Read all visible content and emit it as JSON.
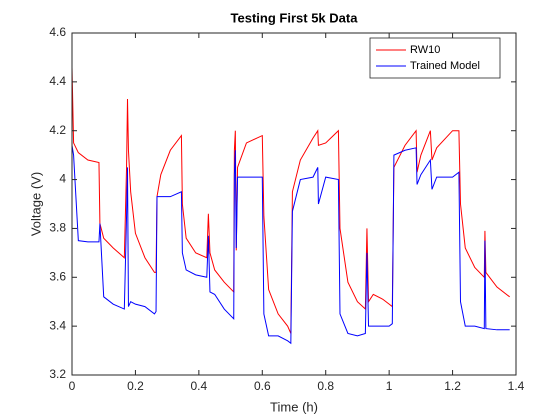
{
  "chart_data": {
    "type": "line",
    "title": "Testing First 5k Data",
    "xlabel": "Time (h)",
    "ylabel": "Voltage (V)",
    "x": [
      0,
      0.005,
      0.02,
      0.05,
      0.085,
      0.088,
      0.1,
      0.13,
      0.165,
      0.172,
      0.175,
      0.178,
      0.185,
      0.2,
      0.23,
      0.26,
      0.265,
      0.268,
      0.28,
      0.31,
      0.345,
      0.348,
      0.36,
      0.39,
      0.425,
      0.43,
      0.435,
      0.45,
      0.48,
      0.51,
      0.512,
      0.515,
      0.518,
      0.522,
      0.55,
      0.6,
      0.605,
      0.62,
      0.65,
      0.68,
      0.69,
      0.695,
      0.72,
      0.76,
      0.775,
      0.777,
      0.8,
      0.84,
      0.845,
      0.87,
      0.9,
      0.925,
      0.93,
      0.935,
      0.95,
      0.98,
      1.0,
      1.01,
      1.015,
      1.05,
      1.085,
      1.088,
      1.1,
      1.13,
      1.135,
      1.15,
      1.2,
      1.22,
      1.225,
      1.24,
      1.27,
      1.3,
      1.302,
      1.305,
      1.34,
      1.38
    ],
    "series": [
      {
        "name": "RW10",
        "color": "#ff0000",
        "values": [
          4.46,
          4.15,
          4.11,
          4.08,
          4.07,
          3.82,
          3.76,
          3.72,
          3.68,
          4.05,
          4.33,
          4.12,
          3.95,
          3.78,
          3.68,
          3.62,
          3.62,
          3.93,
          4.02,
          4.12,
          4.18,
          3.9,
          3.76,
          3.7,
          3.68,
          3.86,
          3.7,
          3.63,
          3.58,
          3.54,
          4.12,
          4.2,
          3.71,
          4.05,
          4.15,
          4.18,
          3.85,
          3.55,
          3.45,
          3.4,
          3.37,
          3.95,
          4.08,
          4.17,
          4.2,
          4.14,
          4.15,
          4.2,
          3.8,
          3.58,
          3.5,
          3.47,
          3.8,
          3.5,
          3.53,
          3.51,
          3.49,
          3.48,
          4.05,
          4.14,
          4.2,
          4.03,
          4.1,
          4.2,
          4.08,
          4.13,
          4.2,
          4.2,
          3.9,
          3.72,
          3.64,
          3.6,
          3.79,
          3.62,
          3.56,
          3.52
        ]
      },
      {
        "name": "Trained Model",
        "color": "#0000ff",
        "values": [
          4.14,
          4.1,
          3.75,
          3.745,
          3.745,
          3.82,
          3.52,
          3.49,
          3.47,
          3.85,
          4.05,
          3.48,
          3.5,
          3.49,
          3.48,
          3.45,
          3.46,
          3.93,
          3.93,
          3.93,
          3.95,
          3.7,
          3.63,
          3.61,
          3.6,
          3.77,
          3.54,
          3.53,
          3.47,
          3.43,
          4.02,
          4.12,
          3.72,
          4.01,
          4.01,
          4.01,
          3.45,
          3.36,
          3.36,
          3.34,
          3.33,
          3.87,
          4.0,
          4.01,
          4.05,
          3.9,
          4.01,
          4.0,
          3.45,
          3.37,
          3.36,
          3.37,
          3.7,
          3.4,
          3.4,
          3.4,
          3.4,
          3.41,
          4.1,
          4.12,
          4.13,
          3.98,
          4.02,
          4.08,
          3.96,
          4.01,
          4.01,
          4.03,
          3.5,
          3.4,
          3.4,
          3.39,
          3.75,
          3.39,
          3.385,
          3.385
        ]
      }
    ],
    "xlim": [
      0,
      1.4
    ],
    "xticks": [
      0,
      0.2,
      0.4,
      0.6,
      0.8,
      1,
      1.2,
      1.4
    ],
    "ylim": [
      3.2,
      4.6
    ],
    "yticks": [
      3.2,
      3.4,
      3.6,
      3.8,
      4,
      4.2,
      4.4,
      4.6
    ],
    "grid": false,
    "legend": "northeast"
  }
}
